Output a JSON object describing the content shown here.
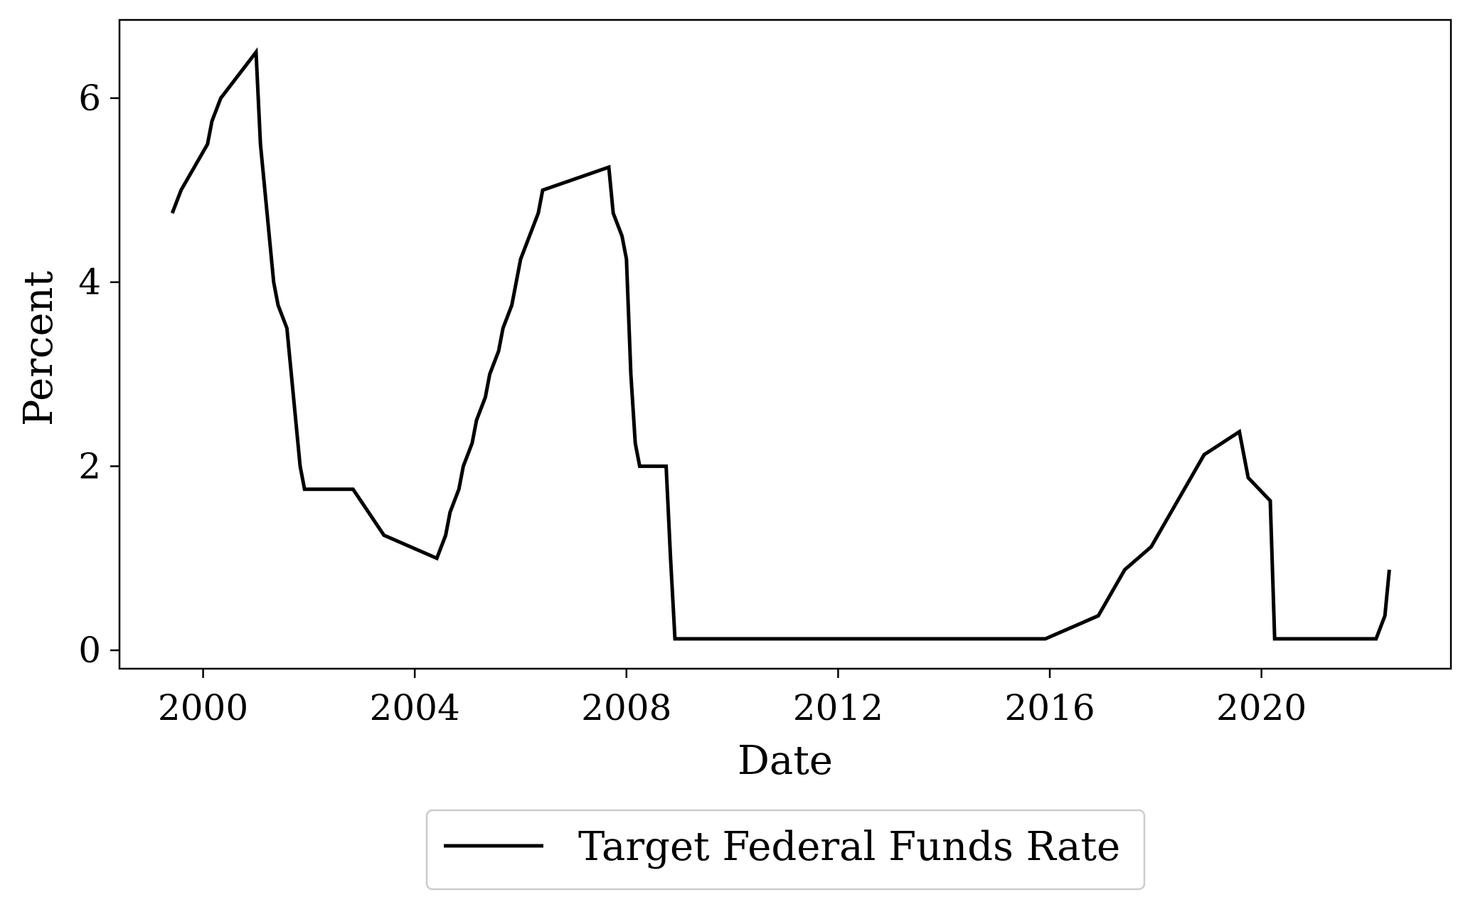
{
  "chart_data": {
    "type": "line",
    "title": "",
    "xlabel": "Date",
    "ylabel": "Percent",
    "xlim": [
      1998.42,
      2023.58
    ],
    "ylim": [
      -0.2,
      6.85
    ],
    "x_ticks": [
      2000,
      2004,
      2008,
      2012,
      2016,
      2020
    ],
    "x_tick_labels": [
      "2000",
      "2004",
      "2008",
      "2012",
      "2016",
      "2020"
    ],
    "y_ticks": [
      0,
      2,
      4,
      6
    ],
    "y_tick_labels": [
      "0",
      "2",
      "4",
      "6"
    ],
    "grid": false,
    "legend": {
      "position": "below-center",
      "entries": [
        "Target Federal Funds Rate"
      ]
    },
    "series": [
      {
        "name": "Target Federal Funds Rate",
        "color": "#000000",
        "x": [
          "1999-06",
          "1999-08",
          "1999-11",
          "2000-02",
          "2000-03",
          "2000-05",
          "2001-01",
          "2001-02",
          "2001-03",
          "2001-04",
          "2001-05",
          "2001-06",
          "2001-08",
          "2001-09",
          "2001-10",
          "2001-11",
          "2001-12",
          "2002-11",
          "2003-06",
          "2004-06",
          "2004-08",
          "2004-09",
          "2004-11",
          "2004-12",
          "2005-02",
          "2005-03",
          "2005-05",
          "2005-06",
          "2005-08",
          "2005-09",
          "2005-11",
          "2005-12",
          "2006-01",
          "2006-03",
          "2006-05",
          "2006-06",
          "2007-09",
          "2007-10",
          "2007-12",
          "2008-01",
          "2008-02",
          "2008-03",
          "2008-04",
          "2008-10",
          "2008-11",
          "2008-12",
          "2015-12",
          "2016-12",
          "2017-03",
          "2017-06",
          "2017-12",
          "2018-03",
          "2018-06",
          "2018-09",
          "2018-12",
          "2019-08",
          "2019-09",
          "2019-10",
          "2020-03",
          "2020-04",
          "2022-03",
          "2022-05",
          "2022-06"
        ],
        "values": [
          4.75,
          5.0,
          5.25,
          5.5,
          5.75,
          6.0,
          6.5,
          5.5,
          5.0,
          4.5,
          4.0,
          3.75,
          3.5,
          3.0,
          2.5,
          2.0,
          1.75,
          1.75,
          1.25,
          1.0,
          1.25,
          1.5,
          1.75,
          2.0,
          2.25,
          2.5,
          2.75,
          3.0,
          3.25,
          3.5,
          3.75,
          4.0,
          4.25,
          4.5,
          4.75,
          5.0,
          5.25,
          4.75,
          4.5,
          4.25,
          3.0,
          2.25,
          2.0,
          2.0,
          1.0,
          0.125,
          0.125,
          0.375,
          0.625,
          0.875,
          1.125,
          1.375,
          1.625,
          1.875,
          2.125,
          2.375,
          2.125,
          1.875,
          1.625,
          0.125,
          0.125,
          0.375,
          0.875
        ]
      }
    ]
  }
}
